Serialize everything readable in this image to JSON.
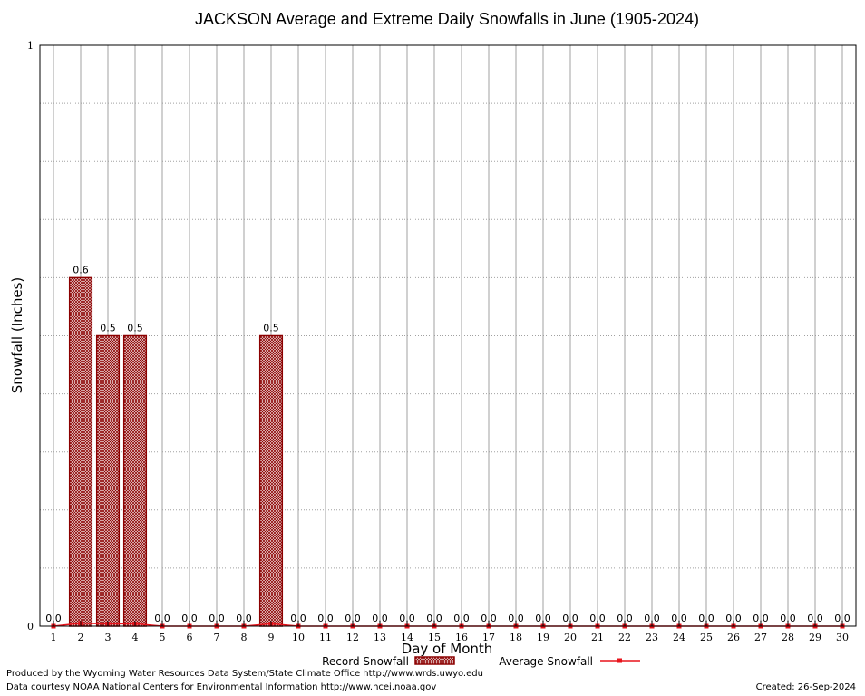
{
  "chart_data": {
    "type": "bar",
    "title": "JACKSON Average and Extreme Daily Snowfalls in June (1905-2024)",
    "xlabel": "Day of Month",
    "ylabel": "Snowfall (Inches)",
    "ylim": [
      0,
      1
    ],
    "y_ticks": [
      "0",
      "1"
    ],
    "grid": true,
    "categories": [
      "1",
      "2",
      "3",
      "4",
      "5",
      "6",
      "7",
      "8",
      "9",
      "10",
      "11",
      "12",
      "13",
      "14",
      "15",
      "16",
      "17",
      "18",
      "19",
      "20",
      "21",
      "22",
      "23",
      "24",
      "25",
      "26",
      "27",
      "28",
      "29",
      "30"
    ],
    "series": [
      {
        "name": "Record Snowfall",
        "type": "bar",
        "values": [
          0.0,
          0.6,
          0.5,
          0.5,
          0.0,
          0.0,
          0.0,
          0.0,
          0.5,
          0.0,
          0.0,
          0.0,
          0.0,
          0.0,
          0.0,
          0.0,
          0.0,
          0.0,
          0.0,
          0.0,
          0.0,
          0.0,
          0.0,
          0.0,
          0.0,
          0.0,
          0.0,
          0.0,
          0.0,
          0.0
        ],
        "labels": [
          "0.0",
          "0.6",
          "0.5",
          "0.5",
          "0.0",
          "0.0",
          "0.0",
          "0.0",
          "0.5",
          "0.0",
          "0.0",
          "0.0",
          "0.0",
          "0.0",
          "0.0",
          "0.0",
          "0.0",
          "0.0",
          "0.0",
          "0.0",
          "0.0",
          "0.0",
          "0.0",
          "0.0",
          "0.0",
          "0.0",
          "0.0",
          "0.0",
          "0.0",
          "0.0"
        ],
        "color": "#8b0000"
      },
      {
        "name": "Average Snowfall",
        "type": "line",
        "values": [
          0.0,
          0.005,
          0.004,
          0.004,
          0.0,
          0.0,
          0.0,
          0.0,
          0.004,
          0.0,
          0.0,
          0.0,
          0.0,
          0.0,
          0.0,
          0.0,
          0.0,
          0.0,
          0.0,
          0.0,
          0.0,
          0.0,
          0.0,
          0.0,
          0.0,
          0.0,
          0.0,
          0.0,
          0.0,
          0.0
        ],
        "color": "#e8141c"
      }
    ],
    "legend": "bottom-center"
  },
  "footer": {
    "produced_by": "Produced by the Wyoming Water Resources Data System/State Climate Office http://www.wrds.uwyo.edu",
    "data_courtesy": "Data courtesy NOAA National Centers for Environmental Information http://www.ncei.noaa.gov",
    "created": "Created:  26-Sep-2024"
  }
}
